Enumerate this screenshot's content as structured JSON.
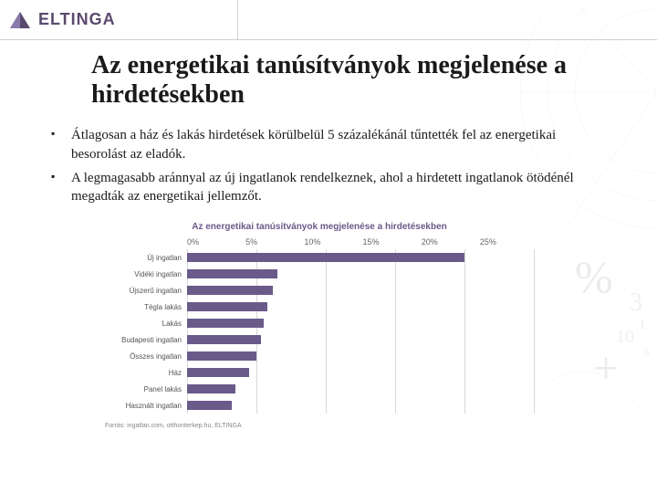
{
  "header": {
    "logo_text": "ELTINGA"
  },
  "title": "Az energetikai tanúsítványok megjelenése a hirdetésekben",
  "bullets": [
    "Átlagosan a ház és lakás hirdetések körülbelül 5 százalékánál tűntették fel az energetikai besorolást az eladók.",
    "A legmagasabb aránnyal az új ingatlanok rendelkeznek, ahol a hirdetett ingatlanok ötödénél megadták az energetikai jellemzőt."
  ],
  "chart": {
    "type": "bar",
    "title": "Az energetikai tanúsítványok megjelenése a hirdetésekben",
    "xmax": 25,
    "xtick_step": 5,
    "xtick_labels": [
      "0%",
      "5%",
      "10%",
      "15%",
      "20%",
      "25%"
    ],
    "categories": [
      "Új ingatlan",
      "Vidéki ingatlan",
      "Újszerű ingatlan",
      "Tégla lakás",
      "Lakás",
      "Budapesti ingatlan",
      "Összes ingatlan",
      "Ház",
      "Panel lakás",
      "Használt ingatlan"
    ],
    "values": [
      20,
      6.5,
      6.2,
      5.8,
      5.5,
      5.3,
      5.0,
      4.5,
      3.5,
      3.2
    ],
    "bar_color": "#6a5a8a",
    "background_color": "#ffffff",
    "grid_color": "#d8d8d8",
    "label_fontsize": 8,
    "source": "Forrás: ingatlan.com, otthonterkep.hu, ELTINGA"
  },
  "colors": {
    "brand": "#5a4a6e",
    "text": "#1a1a1a"
  }
}
